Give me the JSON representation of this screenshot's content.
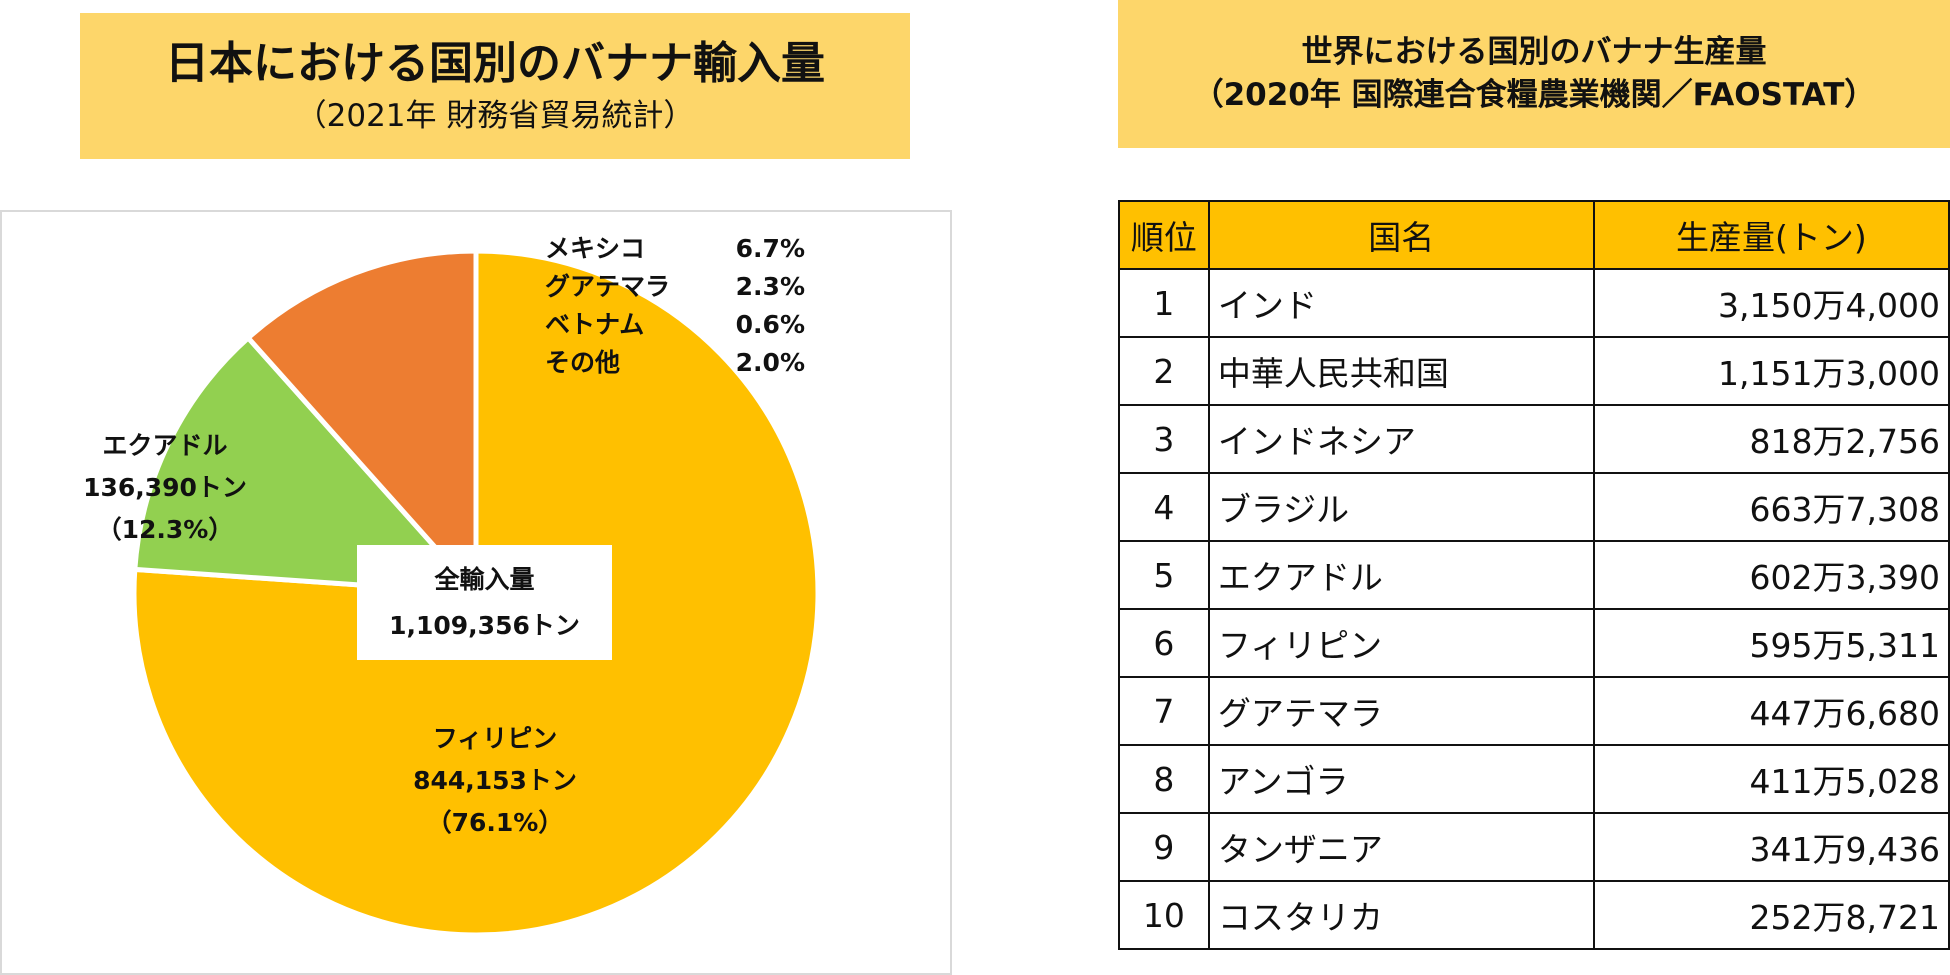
{
  "left_title": {
    "line1": "日本における国別のバナナ輸入量",
    "line2": "（2021年 財務省貿易統計）"
  },
  "right_title": {
    "line1": "世界における国別のバナナ生産量",
    "line2": "（2020年 国際連合食糧農業機関／FAOSTAT）"
  },
  "chart_data": {
    "type": "pie",
    "slices": [
      {
        "label": "フィリピン",
        "value": 844153,
        "percent": 76.1,
        "color": "#ffc000"
      },
      {
        "label": "エクアドル",
        "value": 136390,
        "percent": 12.3,
        "color": "#92d050"
      },
      {
        "label": "メキシコ",
        "percent": 6.7,
        "color": "#ed7d31"
      },
      {
        "label": "グアテマラ",
        "percent": 2.3,
        "color": "#ed7d31"
      },
      {
        "label": "ベトナム",
        "percent": 0.6,
        "color": "#ed7d31"
      },
      {
        "label": "その他",
        "percent": 2.0,
        "color": "#ed7d31"
      }
    ],
    "labels": {
      "ecuador": {
        "name": "エクアドル",
        "amount": "136,390トン",
        "pct": "（12.3%）"
      },
      "philippines": {
        "name": "フィリピン",
        "amount": "844,153トン",
        "pct": "（76.1%）"
      }
    },
    "small_legend": [
      {
        "name": "メキシコ",
        "pct": "6.7%"
      },
      {
        "name": "グアテマラ",
        "pct": "2.3%"
      },
      {
        "name": "ベトナム",
        "pct": "0.6%"
      },
      {
        "name": "その他",
        "pct": "2.0%"
      }
    ],
    "total": {
      "label": "全輸入量",
      "value": "1,109,356トン"
    }
  },
  "table": {
    "headers": [
      "順位",
      "国名",
      "生産量(トン)"
    ],
    "rows": [
      [
        "1",
        "インド",
        "3,150万4,000"
      ],
      [
        "2",
        "中華人民共和国",
        "1,151万3,000"
      ],
      [
        "3",
        "インドネシア",
        "818万2,756"
      ],
      [
        "4",
        "ブラジル",
        "663万7,308"
      ],
      [
        "5",
        "エクアドル",
        "602万3,390"
      ],
      [
        "6",
        "フィリピン",
        "595万5,311"
      ],
      [
        "7",
        "グアテマラ",
        "447万6,680"
      ],
      [
        "8",
        "アンゴラ",
        "411万5,028"
      ],
      [
        "9",
        "タンザニア",
        "341万9,436"
      ],
      [
        "10",
        "コスタリカ",
        "252万8,721"
      ]
    ]
  }
}
